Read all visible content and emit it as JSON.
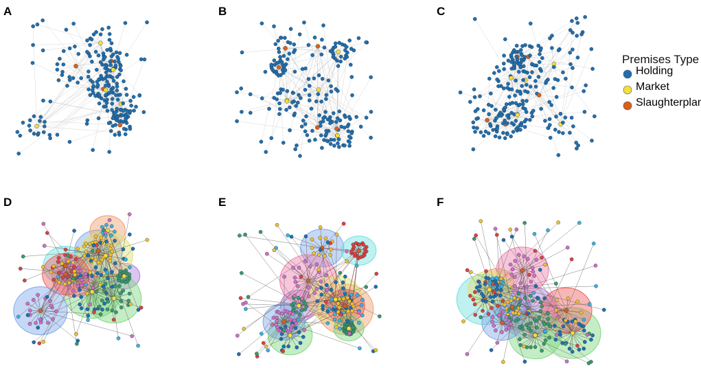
{
  "panels": [
    {
      "label": "A"
    },
    {
      "label": "B"
    },
    {
      "label": "C"
    },
    {
      "label": "D"
    },
    {
      "label": "E"
    },
    {
      "label": "F"
    }
  ],
  "legend": {
    "title": "Premises Type",
    "items": [
      {
        "label": "Holding",
        "color": "#1f6fb0"
      },
      {
        "label": "Market",
        "color": "#f0e040"
      },
      {
        "label": "Slaughterplant",
        "color": "#d9601a"
      }
    ]
  }
}
